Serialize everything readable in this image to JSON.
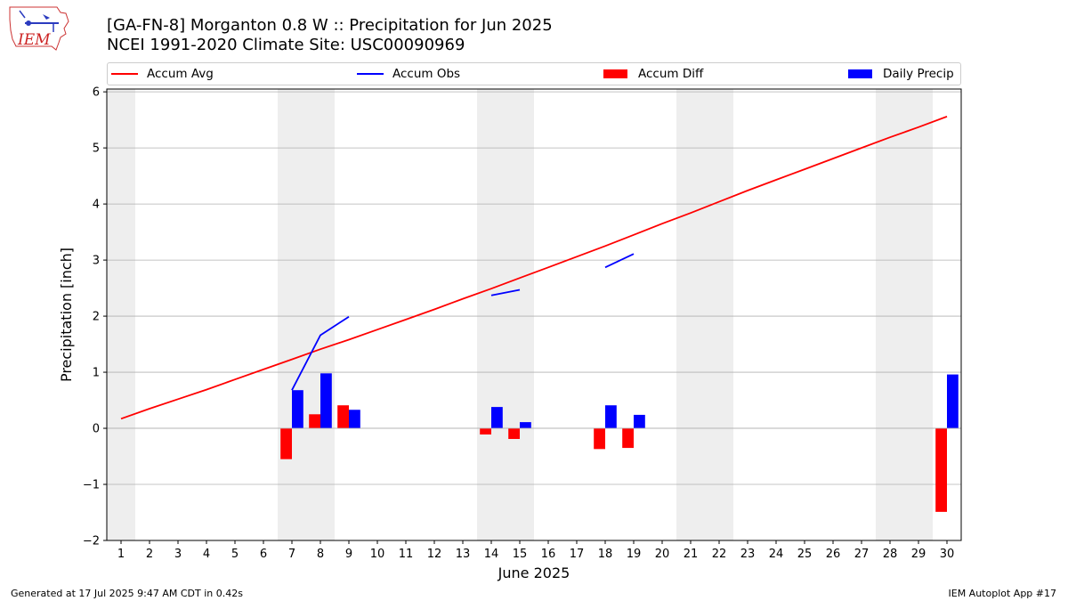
{
  "header": {
    "title_line1": "[GA-FN-8] Morganton 0.8 W :: Precipitation for Jun 2025",
    "title_line2": "NCEI 1991-2020 Climate Site: USC00090969",
    "logo_text": "IEM"
  },
  "legend": {
    "accum_avg": "Accum Avg",
    "accum_obs": "Accum Obs",
    "accum_diff": "Accum Diff",
    "daily_precip": "Daily Precip"
  },
  "colors": {
    "avg": "#ff0000",
    "obs": "#0000ff",
    "diff": "#ff0000",
    "daily": "#0000ff",
    "weekend_shade": "#eeeeee",
    "grid": "#b0b0b0"
  },
  "footer": {
    "left": "Generated at 17 Jul 2025 9:47 AM CDT in 0.42s",
    "right": "IEM Autoplot App #17"
  },
  "chart_data": {
    "type": "bar",
    "xlabel": "June 2025",
    "ylabel": "Precipitation [inch]",
    "xlim": [
      0.5,
      30.5
    ],
    "ylim": [
      -2,
      6.05
    ],
    "yticks": [
      -2,
      -1,
      0,
      1,
      2,
      3,
      4,
      5,
      6
    ],
    "ytick_labels": [
      "−2",
      "−1",
      "0",
      "1",
      "2",
      "3",
      "4",
      "5",
      "6"
    ],
    "categories": [
      1,
      2,
      3,
      4,
      5,
      6,
      7,
      8,
      9,
      10,
      11,
      12,
      13,
      14,
      15,
      16,
      17,
      18,
      19,
      20,
      21,
      22,
      23,
      24,
      25,
      26,
      27,
      28,
      29,
      30
    ],
    "grid": "horizontal",
    "legend_position": "top",
    "shaded_weekend_days": [
      1,
      7,
      8,
      14,
      15,
      21,
      22,
      28,
      29
    ],
    "series": [
      {
        "name": "Accum Avg",
        "kind": "line",
        "x": [
          1,
          2,
          3,
          4,
          5,
          6,
          7,
          8,
          9,
          10,
          11,
          12,
          13,
          14,
          15,
          16,
          17,
          18,
          19,
          20,
          21,
          22,
          23,
          24,
          25,
          26,
          27,
          28,
          29,
          30
        ],
        "values": [
          0.17,
          0.35,
          0.52,
          0.69,
          0.87,
          1.05,
          1.23,
          1.41,
          1.58,
          1.76,
          1.94,
          2.12,
          2.31,
          2.49,
          2.68,
          2.87,
          3.06,
          3.25,
          3.45,
          3.65,
          3.84,
          4.04,
          4.24,
          4.43,
          4.62,
          4.81,
          5.0,
          5.19,
          5.37,
          5.56
        ]
      },
      {
        "name": "Accum Obs",
        "kind": "line",
        "segments": [
          {
            "x": [
              7,
              8,
              9
            ],
            "values": [
              0.68,
              1.66,
              1.99
            ]
          },
          {
            "x": [
              14,
              15
            ],
            "values": [
              2.37,
              2.47
            ]
          },
          {
            "x": [
              18,
              19
            ],
            "values": [
              2.87,
              3.11
            ]
          }
        ]
      },
      {
        "name": "Accum Diff",
        "kind": "bar",
        "offset": "left",
        "x": [
          7,
          8,
          9,
          14,
          15,
          18,
          19,
          30
        ],
        "values": [
          -0.55,
          0.25,
          0.41,
          -0.11,
          -0.19,
          -0.37,
          -0.35,
          -1.49
        ]
      },
      {
        "name": "Daily Precip",
        "kind": "bar",
        "offset": "right",
        "x": [
          7,
          8,
          9,
          14,
          15,
          18,
          19,
          30
        ],
        "values": [
          0.68,
          0.98,
          0.33,
          0.38,
          0.11,
          0.41,
          0.24,
          0.96
        ]
      }
    ]
  }
}
